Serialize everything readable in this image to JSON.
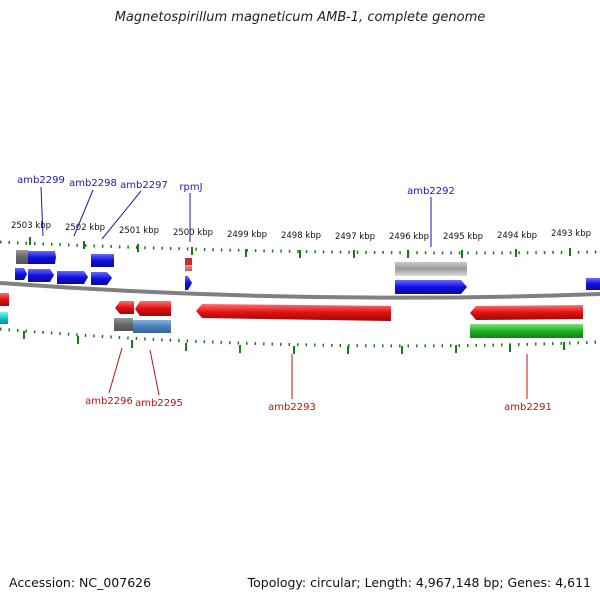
{
  "title": "Magnetospirillum magneticum AMB-1, complete genome",
  "footer": {
    "accession": "Accession: NC_007626",
    "topology": "Topology: circular; Length: 4,967,148 bp; Genes: 4,611"
  },
  "scale": {
    "unit": "kbp",
    "ticks": [
      "2503 kbp",
      "2502 kbp",
      "2501 kbp",
      "2500 kbp",
      "2499 kbp",
      "2498 kbp",
      "2497 kbp",
      "2496 kbp",
      "2495 kbp",
      "2494 kbp",
      "2493 kbp"
    ]
  },
  "colors": {
    "forward_gene": "#1010e0",
    "reverse_gene": "#e01010",
    "rna_gene": "#20b020",
    "pseudo_gene": "#9a9a9a",
    "other_gene": "#10c8c8",
    "backbone": "#808080",
    "tick": "#1a7a1a",
    "forward_label": "#1a1aa8",
    "reverse_label": "#c01010"
  },
  "gene_labels": {
    "forward": [
      "amb2299",
      "amb2298",
      "amb2297",
      "rpmJ",
      "amb2292"
    ],
    "reverse": [
      "amb2296",
      "amb2295",
      "amb2293",
      "amb2291"
    ]
  }
}
